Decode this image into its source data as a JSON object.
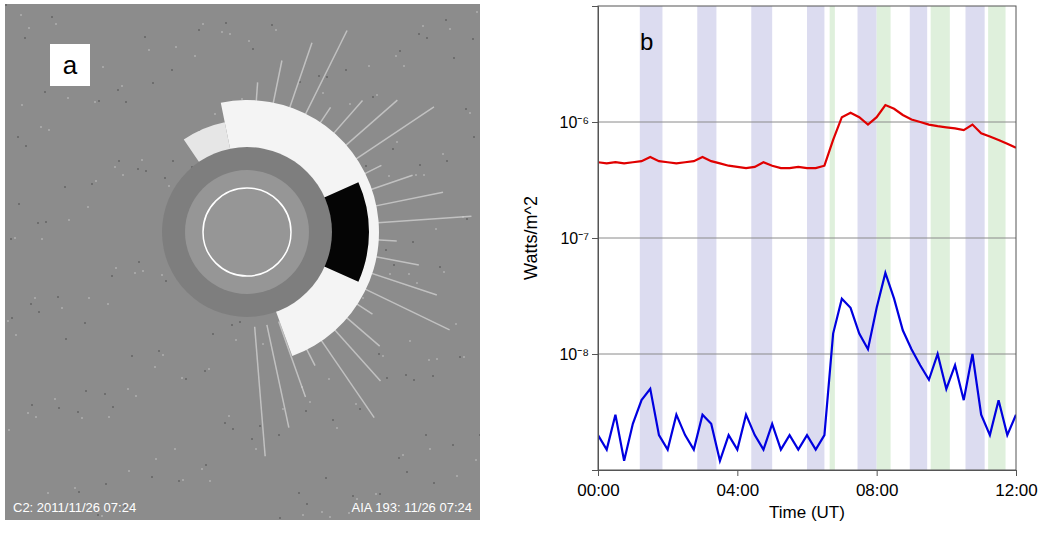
{
  "chart_data": {
    "type": "line",
    "title": "b",
    "x_label": "Time (UT)",
    "y_label": "Watts/m^2",
    "log": "y",
    "grid": true,
    "xlim": [
      0,
      12
    ],
    "xticks": [
      {
        "value": 0,
        "label": "00:00"
      },
      {
        "value": 4,
        "label": "04:00"
      },
      {
        "value": 8,
        "label": "08:00"
      },
      {
        "value": 12,
        "label": "12:00"
      }
    ],
    "ylim": [
      1e-09,
      1e-05
    ],
    "yticks": [
      {
        "value": 1e-08,
        "label": "10⁻⁸"
      },
      {
        "value": 1e-07,
        "label": "10⁻⁷"
      },
      {
        "value": 1e-06,
        "label": "10⁻⁶"
      }
    ],
    "bands": [
      {
        "start": 1.2,
        "end": 1.85,
        "color": "#dcdcf0"
      },
      {
        "start": 2.85,
        "end": 3.4,
        "color": "#dcdcf0"
      },
      {
        "start": 4.4,
        "end": 5.0,
        "color": "#dcdcf0"
      },
      {
        "start": 6.0,
        "end": 6.5,
        "color": "#dcdcf0"
      },
      {
        "start": 6.65,
        "end": 6.8,
        "color": "#dff0dc"
      },
      {
        "start": 7.45,
        "end": 8.0,
        "color": "#dcdcf0"
      },
      {
        "start": 8.0,
        "end": 8.4,
        "color": "#dff0dc"
      },
      {
        "start": 8.95,
        "end": 9.45,
        "color": "#dcdcf0"
      },
      {
        "start": 9.55,
        "end": 10.1,
        "color": "#dff0dc"
      },
      {
        "start": 10.55,
        "end": 11.1,
        "color": "#dcdcf0"
      },
      {
        "start": 11.2,
        "end": 11.7,
        "color": "#dff0dc"
      }
    ],
    "x": [
      0,
      0.25,
      0.5,
      0.75,
      1,
      1.25,
      1.5,
      1.75,
      2,
      2.25,
      2.5,
      2.75,
      3,
      3.25,
      3.5,
      3.75,
      4,
      4.25,
      4.5,
      4.75,
      5,
      5.25,
      5.5,
      5.75,
      6,
      6.25,
      6.5,
      6.75,
      7,
      7.25,
      7.5,
      7.75,
      8,
      8.25,
      8.5,
      8.75,
      9,
      9.25,
      9.5,
      9.75,
      10,
      10.25,
      10.5,
      10.75,
      11,
      11.25,
      11.5,
      11.75,
      12
    ],
    "series": [
      {
        "color": "#e00000",
        "values": [
          4.5e-07,
          4.4e-07,
          4.5e-07,
          4.4e-07,
          4.5e-07,
          4.6e-07,
          5e-07,
          4.6e-07,
          4.5e-07,
          4.4e-07,
          4.5e-07,
          4.6e-07,
          5e-07,
          4.6e-07,
          4.4e-07,
          4.2e-07,
          4.1e-07,
          4e-07,
          4.1e-07,
          4.5e-07,
          4.2e-07,
          4e-07,
          4e-07,
          4.1e-07,
          4e-07,
          4e-07,
          4.2e-07,
          7e-07,
          1.1e-06,
          1.2e-06,
          1.1e-06,
          9.5e-07,
          1.1e-06,
          1.4e-06,
          1.3e-06,
          1.15e-06,
          1.05e-06,
          1e-06,
          9.5e-07,
          9.2e-07,
          9e-07,
          8.8e-07,
          8.5e-07,
          9.5e-07,
          8e-07,
          7.5e-07,
          7e-07,
          6.5e-07,
          6e-07
        ]
      },
      {
        "color": "#0000e0",
        "values": [
          2e-09,
          1.5e-09,
          3e-09,
          1.2e-09,
          2.5e-09,
          4e-09,
          5e-09,
          2e-09,
          1.5e-09,
          3e-09,
          2e-09,
          1.5e-09,
          3e-09,
          2.5e-09,
          1.2e-09,
          2e-09,
          1.5e-09,
          3e-09,
          2e-09,
          1.5e-09,
          2.5e-09,
          1.5e-09,
          2e-09,
          1.5e-09,
          2e-09,
          1.5e-09,
          2e-09,
          1.5e-08,
          3e-08,
          2.5e-08,
          1.5e-08,
          1.1e-08,
          2.5e-08,
          5e-08,
          3e-08,
          1.6e-08,
          1.1e-08,
          8e-09,
          6e-09,
          1e-08,
          5e-09,
          8e-09,
          4e-09,
          1e-08,
          3e-09,
          2e-09,
          4e-09,
          2e-09,
          3e-09
        ]
      }
    ]
  },
  "image": {
    "label": "a",
    "caption_left": "C2: 2011/11/26 07:24",
    "caption_right": "AIA 193: 11/26 07:24"
  }
}
